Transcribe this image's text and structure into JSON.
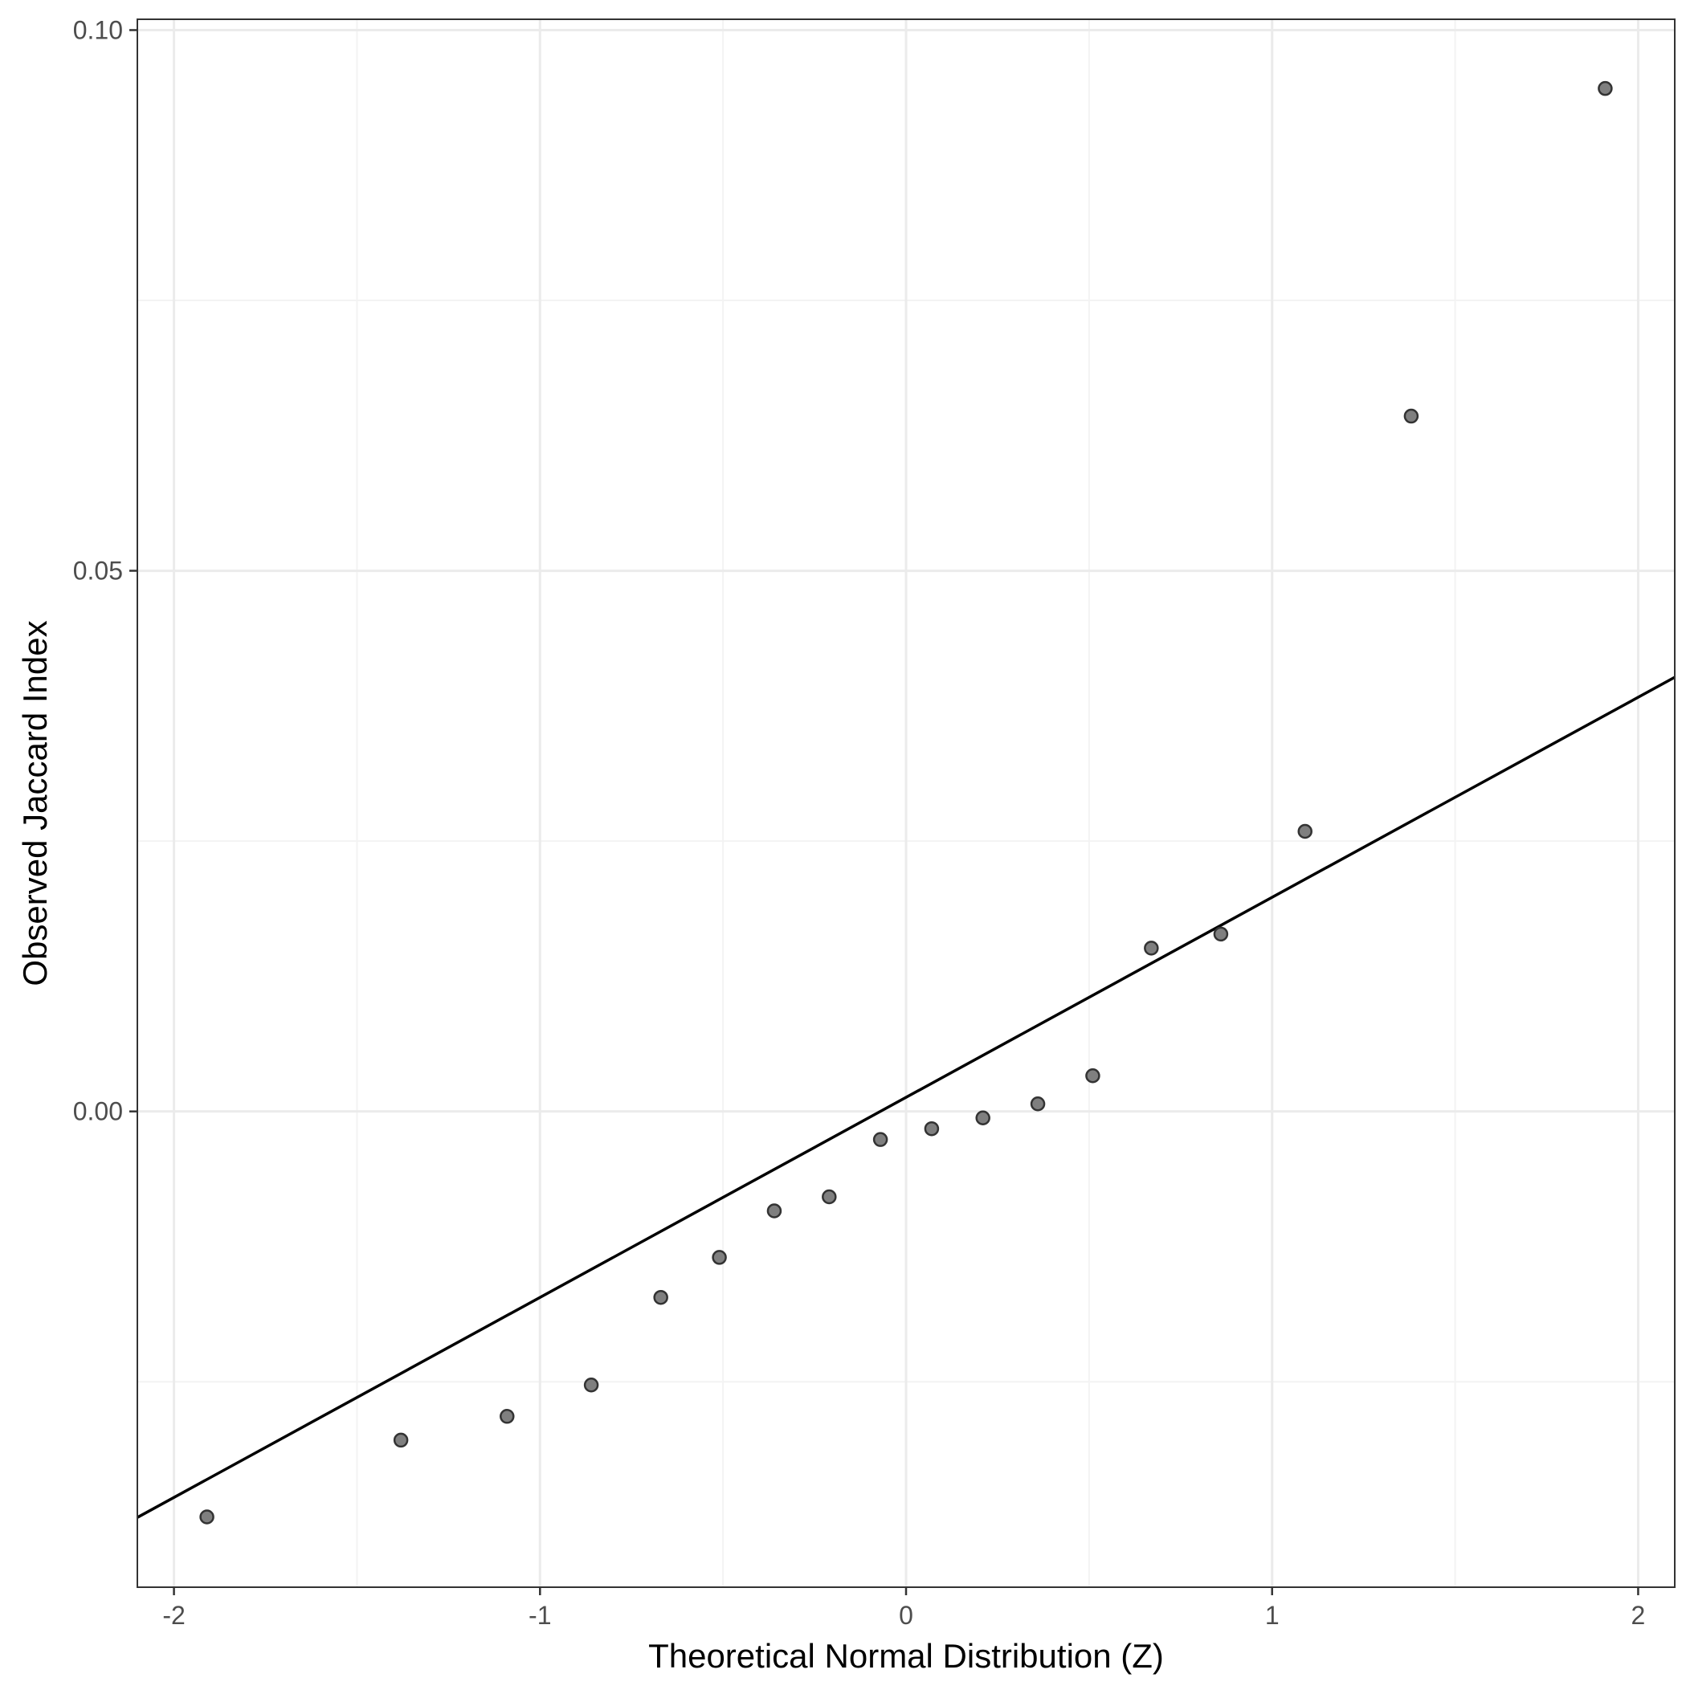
{
  "chart_data": {
    "type": "scatter",
    "xlabel": "Theoretical Normal Distribution (Z)",
    "ylabel": "Observed Jaccard Index",
    "xlim": [
      -2.1,
      2.1
    ],
    "ylim": [
      -0.044,
      0.101
    ],
    "x_ticks": [
      -2,
      -1,
      0,
      1,
      2
    ],
    "x_tick_labels": [
      "-2",
      "-1",
      "0",
      "1",
      "2"
    ],
    "y_ticks": [
      0.0,
      0.05,
      0.1
    ],
    "y_tick_labels": [
      "0.00",
      "0.05",
      "0.10"
    ],
    "grid": true,
    "points": {
      "x": [
        -1.91,
        -1.38,
        -1.09,
        -0.86,
        -0.67,
        -0.51,
        -0.36,
        -0.21,
        -0.07,
        0.07,
        0.21,
        0.36,
        0.51,
        0.67,
        0.86,
        1.09,
        1.38,
        1.91
      ],
      "y": [
        -0.0375,
        -0.0304,
        -0.0282,
        -0.0253,
        -0.0172,
        -0.0135,
        -0.0092,
        -0.0079,
        -0.0026,
        -0.0016,
        -0.0006,
        0.0007,
        0.0033,
        0.0151,
        0.0164,
        0.0259,
        0.0643,
        0.0946
      ]
    },
    "reference_line": {
      "intercept": 0.0013,
      "slope": 0.0185
    },
    "colors": {
      "point_fill": "#7f7f7f",
      "point_stroke": "#333333",
      "line": "#000000",
      "grid_major": "#ebebeb",
      "grid_minor": "#f3f3f3",
      "panel_border": "#333333"
    }
  }
}
